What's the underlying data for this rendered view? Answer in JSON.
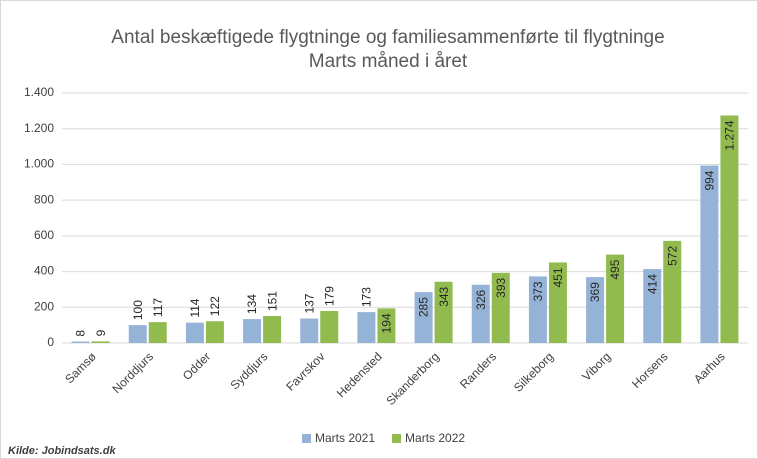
{
  "chart_data": {
    "type": "bar",
    "title": "Antal beskæftigede flygtninge og familiesammenførte til flygtninge",
    "subtitle": "Marts måned i året",
    "source": "Kilde: Jobindsats.dk",
    "categories": [
      "Samsø",
      "Norddjurs",
      "Odder",
      "Syddjurs",
      "Favrskov",
      "Hedensted",
      "Skanderborg",
      "Randers",
      "Silkeborg",
      "Viborg",
      "Horsens",
      "Aarhus"
    ],
    "series": [
      {
        "name": "Marts 2021",
        "color": "#95b3d7",
        "values": [
          8,
          100,
          114,
          134,
          137,
          173,
          285,
          326,
          373,
          369,
          414,
          994
        ]
      },
      {
        "name": "Marts 2022",
        "color": "#92bb4f",
        "values": [
          9,
          117,
          122,
          151,
          179,
          194,
          343,
          393,
          451,
          495,
          572,
          1274
        ],
        "value_labels": [
          "9",
          "117",
          "122",
          "151",
          "179",
          "194",
          "343",
          "393",
          "451",
          "495",
          "572",
          "1.274"
        ]
      }
    ],
    "ylim": [
      0,
      1400
    ],
    "yticks": [
      0,
      200,
      400,
      600,
      800,
      {
        "value": 1000,
        "label": "1.000"
      },
      {
        "value": 1200,
        "label": "1.200"
      },
      {
        "value": 1400,
        "label": "1.400"
      }
    ],
    "grid": true,
    "legend": "bottom"
  }
}
